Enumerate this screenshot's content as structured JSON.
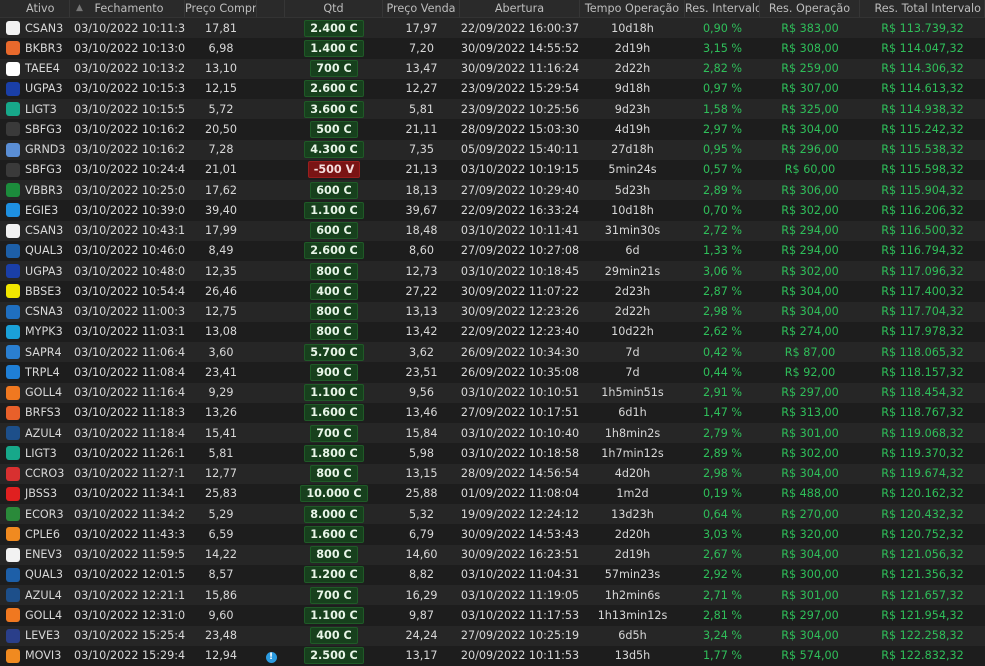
{
  "headers": [
    "Ativo",
    "Fechamento",
    "Preço Compra",
    "",
    "Qtd",
    "Preço Venda",
    "Abertura",
    "Tempo Operação",
    "Res. Intervalo (%",
    "Res. Operação",
    "Res. Total Intervalo"
  ],
  "sort_indicator": "▲",
  "colors": {
    "profit": "#2fbf5a",
    "buy_badge": "#17401d",
    "sell_badge": "#7a1414",
    "info_icon": "#2b9be0"
  },
  "ticker_icon_colors": {
    "CSAN3": "#f2f2f2",
    "BKBR3": "#e8692c",
    "TAEE4": "#ffffff",
    "UGPA3": "#1a3fa8",
    "LIGT3": "#17a88a",
    "SBFG3": "#3a3a3a",
    "GRND3": "#5b8fd6",
    "VBBR3": "#1c8c3c",
    "EGIE3": "#1e90e0",
    "QUAL3": "#1d5fa8",
    "BBSE3": "#f2e600",
    "CSNA3": "#1f6fc0",
    "MYPK3": "#1aa0d8",
    "SAPR4": "#2a7fd0",
    "TRPL4": "#1f7fd6",
    "GOLL4": "#f07820",
    "BRFS3": "#e8602a",
    "AZUL4": "#1d4f8a",
    "CCRO3": "#d83030",
    "JBSS3": "#e02020",
    "ECOR3": "#2a8a3a",
    "CPLE6": "#f08a20",
    "ENEV3": "#f2f2f2",
    "LEVE3": "#2a3f8a",
    "MOVI3": "#f08a20"
  },
  "rows": [
    {
      "ativo": "CSAN3",
      "fechamento": "03/10/2022 10:11:37",
      "compra": "17,81",
      "qtd": "2.400 C",
      "side": "C",
      "venda": "17,97",
      "abertura": "22/09/2022 16:00:37",
      "tempo": "10d18h",
      "res_int": "0,90 %",
      "res_op": "R$ 383,00",
      "res_total": "R$ 113.739,32"
    },
    {
      "ativo": "BKBR3",
      "fechamento": "03/10/2022 10:13:02",
      "compra": "6,98",
      "qtd": "1.400 C",
      "side": "C",
      "venda": "7,20",
      "abertura": "30/09/2022 14:55:52",
      "tempo": "2d19h",
      "res_int": "3,15 %",
      "res_op": "R$ 308,00",
      "res_total": "R$ 114.047,32"
    },
    {
      "ativo": "TAEE4",
      "fechamento": "03/10/2022 10:13:25",
      "compra": "13,10",
      "qtd": "700 C",
      "side": "C",
      "venda": "13,47",
      "abertura": "30/09/2022 11:16:24",
      "tempo": "2d22h",
      "res_int": "2,82 %",
      "res_op": "R$ 259,00",
      "res_total": "R$ 114.306,32"
    },
    {
      "ativo": "UGPA3",
      "fechamento": "03/10/2022 10:15:39",
      "compra": "12,15",
      "qtd": "2.600 C",
      "side": "C",
      "venda": "12,27",
      "abertura": "23/09/2022 15:29:54",
      "tempo": "9d18h",
      "res_int": "0,97 %",
      "res_op": "R$ 307,00",
      "res_total": "R$ 114.613,32"
    },
    {
      "ativo": "LIGT3",
      "fechamento": "03/10/2022 10:15:52",
      "compra": "5,72",
      "qtd": "3.600 C",
      "side": "C",
      "venda": "5,81",
      "abertura": "23/09/2022 10:25:56",
      "tempo": "9d23h",
      "res_int": "1,58 %",
      "res_op": "R$ 325,00",
      "res_total": "R$ 114.938,32"
    },
    {
      "ativo": "SBFG3",
      "fechamento": "03/10/2022 10:16:20",
      "compra": "20,50",
      "qtd": "500 C",
      "side": "C",
      "venda": "21,11",
      "abertura": "28/09/2022 15:03:30",
      "tempo": "4d19h",
      "res_int": "2,97 %",
      "res_op": "R$ 304,00",
      "res_total": "R$ 115.242,32"
    },
    {
      "ativo": "GRND3",
      "fechamento": "03/10/2022 10:16:26",
      "compra": "7,28",
      "qtd": "4.300 C",
      "side": "C",
      "venda": "7,35",
      "abertura": "05/09/2022 15:40:11",
      "tempo": "27d18h",
      "res_int": "0,95 %",
      "res_op": "R$ 296,00",
      "res_total": "R$ 115.538,32"
    },
    {
      "ativo": "SBFG3",
      "fechamento": "03/10/2022 10:24:40",
      "compra": "21,01",
      "qtd": "-500 V",
      "side": "V",
      "venda": "21,13",
      "abertura": "03/10/2022 10:19:15",
      "tempo": "5min24s",
      "res_int": "0,57 %",
      "res_op": "R$ 60,00",
      "res_total": "R$ 115.598,32"
    },
    {
      "ativo": "VBBR3",
      "fechamento": "03/10/2022 10:25:05",
      "compra": "17,62",
      "qtd": "600 C",
      "side": "C",
      "venda": "18,13",
      "abertura": "27/09/2022 10:29:40",
      "tempo": "5d23h",
      "res_int": "2,89 %",
      "res_op": "R$ 306,00",
      "res_total": "R$ 115.904,32"
    },
    {
      "ativo": "EGIE3",
      "fechamento": "03/10/2022 10:39:01",
      "compra": "39,40",
      "qtd": "1.100 C",
      "side": "C",
      "venda": "39,67",
      "abertura": "22/09/2022 16:33:24",
      "tempo": "10d18h",
      "res_int": "0,70 %",
      "res_op": "R$ 302,00",
      "res_total": "R$ 116.206,32"
    },
    {
      "ativo": "CSAN3",
      "fechamento": "03/10/2022 10:43:11",
      "compra": "17,99",
      "qtd": "600 C",
      "side": "C",
      "venda": "18,48",
      "abertura": "03/10/2022 10:11:41",
      "tempo": "31min30s",
      "res_int": "2,72 %",
      "res_op": "R$ 294,00",
      "res_total": "R$ 116.500,32"
    },
    {
      "ativo": "QUAL3",
      "fechamento": "03/10/2022 10:46:09",
      "compra": "8,49",
      "qtd": "2.600 C",
      "side": "C",
      "venda": "8,60",
      "abertura": "27/09/2022 10:27:08",
      "tempo": "6d",
      "res_int": "1,33 %",
      "res_op": "R$ 294,00",
      "res_total": "R$ 116.794,32"
    },
    {
      "ativo": "UGPA3",
      "fechamento": "03/10/2022 10:48:07",
      "compra": "12,35",
      "qtd": "800 C",
      "side": "C",
      "venda": "12,73",
      "abertura": "03/10/2022 10:18:45",
      "tempo": "29min21s",
      "res_int": "3,06 %",
      "res_op": "R$ 302,00",
      "res_total": "R$ 117.096,32"
    },
    {
      "ativo": "BBSE3",
      "fechamento": "03/10/2022 10:54:46",
      "compra": "26,46",
      "qtd": "400 C",
      "side": "C",
      "venda": "27,22",
      "abertura": "30/09/2022 11:07:22",
      "tempo": "2d23h",
      "res_int": "2,87 %",
      "res_op": "R$ 304,00",
      "res_total": "R$ 117.400,32"
    },
    {
      "ativo": "CSNA3",
      "fechamento": "03/10/2022 11:00:35",
      "compra": "12,75",
      "qtd": "800 C",
      "side": "C",
      "venda": "13,13",
      "abertura": "30/09/2022 12:23:26",
      "tempo": "2d22h",
      "res_int": "2,98 %",
      "res_op": "R$ 304,00",
      "res_total": "R$ 117.704,32"
    },
    {
      "ativo": "MYPK3",
      "fechamento": "03/10/2022 11:03:10",
      "compra": "13,08",
      "qtd": "800 C",
      "side": "C",
      "venda": "13,42",
      "abertura": "22/09/2022 12:23:40",
      "tempo": "10d22h",
      "res_int": "2,62 %",
      "res_op": "R$ 274,00",
      "res_total": "R$ 117.978,32"
    },
    {
      "ativo": "SAPR4",
      "fechamento": "03/10/2022 11:06:44",
      "compra": "3,60",
      "qtd": "5.700 C",
      "side": "C",
      "venda": "3,62",
      "abertura": "26/09/2022 10:34:30",
      "tempo": "7d",
      "res_int": "0,42 %",
      "res_op": "R$ 87,00",
      "res_total": "R$ 118.065,32"
    },
    {
      "ativo": "TRPL4",
      "fechamento": "03/10/2022 11:08:44",
      "compra": "23,41",
      "qtd": "900 C",
      "side": "C",
      "venda": "23,51",
      "abertura": "26/09/2022 10:35:08",
      "tempo": "7d",
      "res_int": "0,44 %",
      "res_op": "R$ 92,00",
      "res_total": "R$ 118.157,32"
    },
    {
      "ativo": "GOLL4",
      "fechamento": "03/10/2022 11:16:43",
      "compra": "9,29",
      "qtd": "1.100 C",
      "side": "C",
      "venda": "9,56",
      "abertura": "03/10/2022 10:10:51",
      "tempo": "1h5min51s",
      "res_int": "2,91 %",
      "res_op": "R$ 297,00",
      "res_total": "R$ 118.454,32"
    },
    {
      "ativo": "BRFS3",
      "fechamento": "03/10/2022 11:18:39",
      "compra": "13,26",
      "qtd": "1.600 C",
      "side": "C",
      "venda": "13,46",
      "abertura": "27/09/2022 10:17:51",
      "tempo": "6d1h",
      "res_int": "1,47 %",
      "res_op": "R$ 313,00",
      "res_total": "R$ 118.767,32"
    },
    {
      "ativo": "AZUL4",
      "fechamento": "03/10/2022 11:18:43",
      "compra": "15,41",
      "qtd": "700 C",
      "side": "C",
      "venda": "15,84",
      "abertura": "03/10/2022 10:10:40",
      "tempo": "1h8min2s",
      "res_int": "2,79 %",
      "res_op": "R$ 301,00",
      "res_total": "R$ 119.068,32"
    },
    {
      "ativo": "LIGT3",
      "fechamento": "03/10/2022 11:26:10",
      "compra": "5,81",
      "qtd": "1.800 C",
      "side": "C",
      "venda": "5,98",
      "abertura": "03/10/2022 10:18:58",
      "tempo": "1h7min12s",
      "res_int": "2,89 %",
      "res_op": "R$ 302,00",
      "res_total": "R$ 119.370,32"
    },
    {
      "ativo": "CCRO3",
      "fechamento": "03/10/2022 11:27:10",
      "compra": "12,77",
      "qtd": "800 C",
      "side": "C",
      "venda": "13,15",
      "abertura": "28/09/2022 14:56:54",
      "tempo": "4d20h",
      "res_int": "2,98 %",
      "res_op": "R$ 304,00",
      "res_total": "R$ 119.674,32"
    },
    {
      "ativo": "JBSS3",
      "fechamento": "03/10/2022 11:34:15",
      "compra": "25,83",
      "qtd": "10.000 C",
      "side": "C",
      "venda": "25,88",
      "abertura": "01/09/2022 11:08:04",
      "tempo": "1m2d",
      "res_int": "0,19 %",
      "res_op": "R$ 488,00",
      "res_total": "R$ 120.162,32"
    },
    {
      "ativo": "ECOR3",
      "fechamento": "03/10/2022 11:34:22",
      "compra": "5,29",
      "qtd": "8.000 C",
      "side": "C",
      "venda": "5,32",
      "abertura": "19/09/2022 12:24:12",
      "tempo": "13d23h",
      "res_int": "0,64 %",
      "res_op": "R$ 270,00",
      "res_total": "R$ 120.432,32"
    },
    {
      "ativo": "CPLE6",
      "fechamento": "03/10/2022 11:43:34",
      "compra": "6,59",
      "qtd": "1.600 C",
      "side": "C",
      "venda": "6,79",
      "abertura": "30/09/2022 14:53:43",
      "tempo": "2d20h",
      "res_int": "3,03 %",
      "res_op": "R$ 320,00",
      "res_total": "R$ 120.752,32"
    },
    {
      "ativo": "ENEV3",
      "fechamento": "03/10/2022 11:59:55",
      "compra": "14,22",
      "qtd": "800 C",
      "side": "C",
      "venda": "14,60",
      "abertura": "30/09/2022 16:23:51",
      "tempo": "2d19h",
      "res_int": "2,67 %",
      "res_op": "R$ 304,00",
      "res_total": "R$ 121.056,32"
    },
    {
      "ativo": "QUAL3",
      "fechamento": "03/10/2022 12:01:55",
      "compra": "8,57",
      "qtd": "1.200 C",
      "side": "C",
      "venda": "8,82",
      "abertura": "03/10/2022 11:04:31",
      "tempo": "57min23s",
      "res_int": "2,92 %",
      "res_op": "R$ 300,00",
      "res_total": "R$ 121.356,32"
    },
    {
      "ativo": "AZUL4",
      "fechamento": "03/10/2022 12:21:12",
      "compra": "15,86",
      "qtd": "700 C",
      "side": "C",
      "venda": "16,29",
      "abertura": "03/10/2022 11:19:05",
      "tempo": "1h2min6s",
      "res_int": "2,71 %",
      "res_op": "R$ 301,00",
      "res_total": "R$ 121.657,32"
    },
    {
      "ativo": "GOLL4",
      "fechamento": "03/10/2022 12:31:05",
      "compra": "9,60",
      "qtd": "1.100 C",
      "side": "C",
      "venda": "9,87",
      "abertura": "03/10/2022 11:17:53",
      "tempo": "1h13min12s",
      "res_int": "2,81 %",
      "res_op": "R$ 297,00",
      "res_total": "R$ 121.954,32"
    },
    {
      "ativo": "LEVE3",
      "fechamento": "03/10/2022 15:25:45",
      "compra": "23,48",
      "qtd": "400 C",
      "side": "C",
      "venda": "24,24",
      "abertura": "27/09/2022 10:25:19",
      "tempo": "6d5h",
      "res_int": "3,24 %",
      "res_op": "R$ 304,00",
      "res_total": "R$ 122.258,32"
    },
    {
      "ativo": "MOVI3",
      "fechamento": "03/10/2022 15:29:42",
      "compra": "12,94",
      "info": "!",
      "qtd": "2.500 C",
      "side": "C",
      "venda": "13,17",
      "abertura": "20/09/2022 10:11:53",
      "tempo": "13d5h",
      "res_int": "1,77 %",
      "res_op": "R$ 574,00",
      "res_total": "R$ 122.832,32"
    }
  ]
}
